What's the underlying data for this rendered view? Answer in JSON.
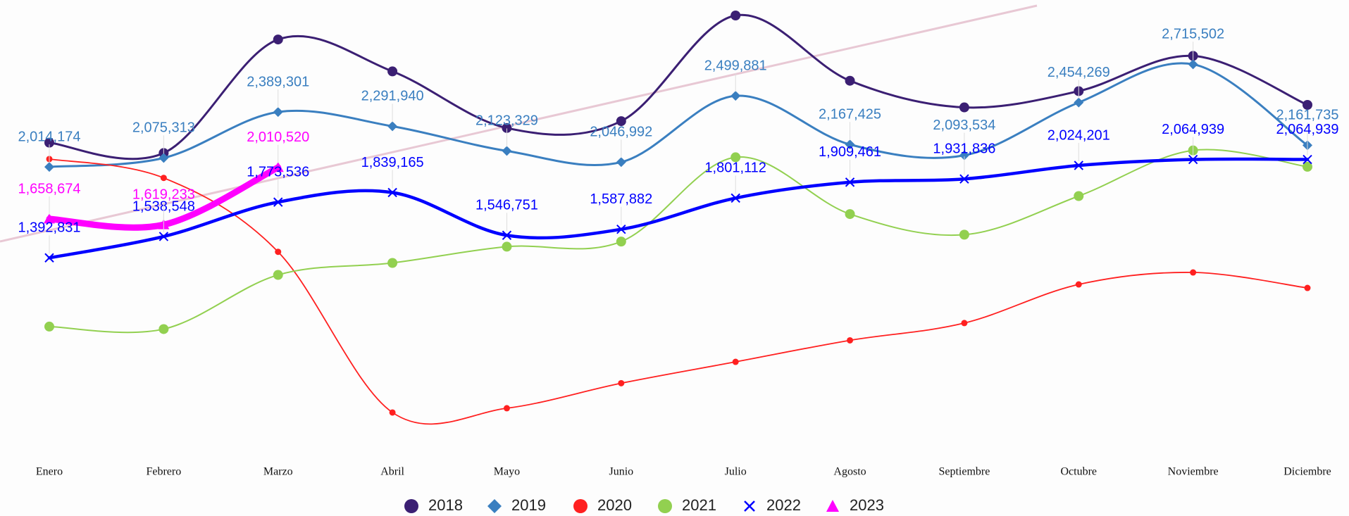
{
  "chart_data": {
    "type": "line",
    "categories": [
      "Enero",
      "Febrero",
      "Marzo",
      "Abril",
      "Mayo",
      "Junio",
      "Julio",
      "Agosto",
      "Septiembre",
      "Octubre",
      "Noviembre",
      "Diciembre"
    ],
    "ylim": [
      100000,
      3150000
    ],
    "series": [
      {
        "name": "2018",
        "color": "#3b1f73",
        "marker": "circle",
        "values": [
          2180000,
          2109000,
          2885000,
          2667000,
          2280000,
          2327000,
          3049000,
          2603000,
          2421000,
          2532000,
          2773000,
          2438000
        ]
      },
      {
        "name": "2019",
        "color": "#3a7fc0",
        "marker": "diamond",
        "values": [
          2014174,
          2075313,
          2389301,
          2291940,
          2123329,
          2046992,
          2499881,
          2167425,
          2093534,
          2454269,
          2715502,
          2161735
        ],
        "value_labels": [
          "2,014,174",
          "2,075,313",
          "2,389,301",
          "2,291,940",
          "2,123,329",
          "2,046,992",
          "2,499,881",
          "2,167,425",
          "2,093,534",
          "2,454,269",
          "2,715,502",
          "2,161,735"
        ]
      },
      {
        "name": "2020",
        "color": "#ff2020",
        "marker": "circle",
        "values": [
          2068000,
          1939000,
          1434000,
          336000,
          365000,
          536000,
          682000,
          829000,
          947000,
          1211000,
          1293000,
          1187000
        ]
      },
      {
        "name": "2021",
        "color": "#92d050",
        "marker": "circle",
        "values": [
          923000,
          906000,
          1276000,
          1358000,
          1469000,
          1504000,
          2080000,
          1692000,
          1551000,
          1815000,
          2127000,
          2015000
        ]
      },
      {
        "name": "2022",
        "color": "#0000ff",
        "marker": "x",
        "values": [
          1392831,
          1538548,
          1773536,
          1839165,
          1546751,
          1587882,
          1801112,
          1909461,
          1931836,
          2024201,
          2064939,
          2064939
        ],
        "value_labels": [
          "1,392,831",
          "1,538,548",
          "1,773,536",
          "1,839,165",
          "1,546,751",
          "1,587,882",
          "1,801,112",
          "1,909,461",
          "1,931,836",
          "2,024,201",
          "2,064,939",
          "2,064,939"
        ]
      },
      {
        "name": "2023",
        "color": "#ff00ff",
        "marker": "triangle",
        "values": [
          1658674,
          1619233,
          2010520,
          null,
          null,
          null,
          null,
          null,
          null,
          null,
          null,
          null
        ],
        "value_labels": [
          "1,658,674",
          "1,619,233",
          "2,010,520",
          null,
          null,
          null,
          null,
          null,
          null,
          null,
          null,
          null
        ]
      }
    ]
  }
}
